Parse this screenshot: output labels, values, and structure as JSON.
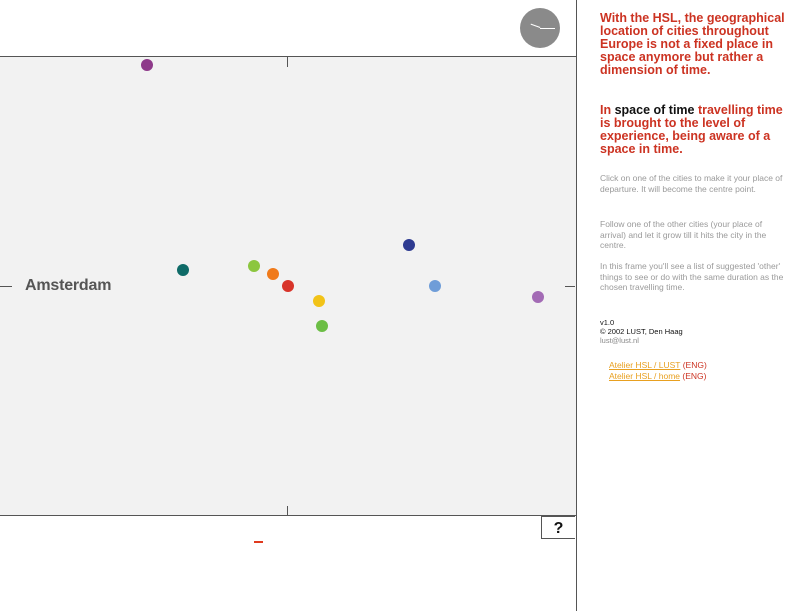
{
  "map": {
    "center_city": "Amsterdam",
    "cities": [
      {
        "color": "#8e3a8a"
      },
      {
        "color": "#0f6b68"
      },
      {
        "color": "#8cc63f"
      },
      {
        "color": "#f07a1a"
      },
      {
        "color": "#d8342a"
      },
      {
        "color": "#f2c318"
      },
      {
        "color": "#6cbe45"
      },
      {
        "color": "#2e3b91"
      },
      {
        "color": "#6f9dd8"
      },
      {
        "color": "#a36bb5"
      }
    ]
  },
  "help_label": "?",
  "panel": {
    "headline1": "With the HSL, the geographical location of cities throughout Europe is not a fixed place in space anymore but rather a dimension of time.",
    "headline2_a": "In ",
    "headline2_b": "space of time",
    "headline2_c": " travelling time is brought to the level of experience, being aware of a space in time.",
    "instruction1": "Click on one of the cities to make it your place of departure. It will become the centre point.",
    "instruction2": "Follow one of the other cities (your place of arrival) and let it grow till it hits the city in the centre.",
    "instruction3": "In this frame you'll see a list of suggested 'other' things to see or do with the same duration as the chosen travelling time.",
    "version": "v1.0",
    "copyright": "© 2002 LUST, Den Haag",
    "email": "lust@lust.nl",
    "links": [
      {
        "label": "Atelier HSL / LUST",
        "lang": " (ENG)"
      },
      {
        "label": "Atelier HSL / home",
        "lang": " (ENG)"
      }
    ]
  }
}
